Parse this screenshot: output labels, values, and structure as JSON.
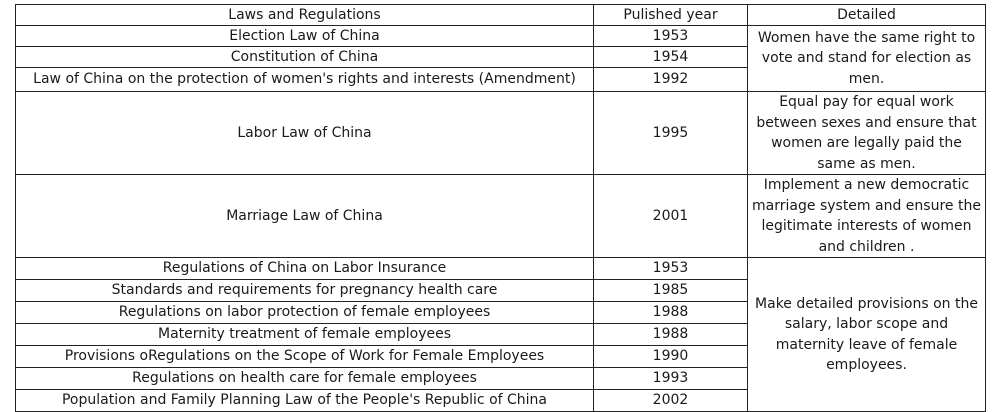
{
  "table": {
    "headers": {
      "law": "Laws and Regulations",
      "year": "Pulished year",
      "detail": "Detailed"
    },
    "groups": [
      {
        "rows": [
          {
            "law": "Election Law of China",
            "year": "1953"
          },
          {
            "law": "Constitution of China",
            "year": "1954"
          },
          {
            "law": "Law of China on the protection of women's rights and interests (Amendment)",
            "year": "1992"
          }
        ],
        "detail": "Women have the same right to vote and stand for election as men."
      },
      {
        "rows": [
          {
            "law": "Labor Law of China",
            "year": "1995"
          }
        ],
        "detail": "Equal pay for equal work between sexes and ensure that women are legally paid the same as men."
      },
      {
        "rows": [
          {
            "law": "Marriage Law of China",
            "year": "2001"
          }
        ],
        "detail": "Implement a new democratic marriage system and ensure the legitimate interests of women and children ."
      },
      {
        "rows": [
          {
            "law": "Regulations of  China on Labor Insurance",
            "year": "1953"
          },
          {
            "law": "Standards and requirements for pregnancy health care",
            "year": "1985"
          },
          {
            "law": "Regulations on labor protection of female employees",
            "year": "1988"
          },
          {
            "law": "Maternity treatment of female employees",
            "year": "1988"
          },
          {
            "law": "Provisions oRegulations on the Scope of Work for Female Employees",
            "year": "1990"
          },
          {
            "law": "Regulations on health care for female employees",
            "year": "1993"
          },
          {
            "law": "Population and Family Planning Law of the People's Republic of China",
            "year": "2002"
          }
        ],
        "detail": "Make detailed provisions on the salary, labor scope and maternity leave of female employees."
      }
    ]
  }
}
